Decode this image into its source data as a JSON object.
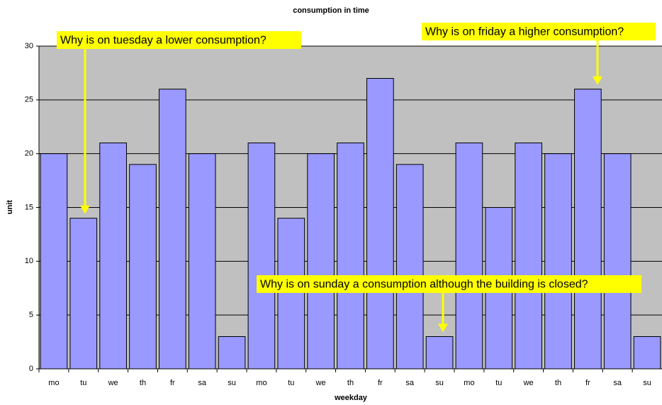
{
  "chart_data": {
    "type": "bar",
    "title": "consumption in time",
    "x_label": "weekday",
    "y_label": "unit",
    "categories": [
      "mo",
      "tu",
      "we",
      "th",
      "fr",
      "sa",
      "su",
      "mo",
      "tu",
      "we",
      "th",
      "fr",
      "sa",
      "su",
      "mo",
      "tu",
      "we",
      "th",
      "fr",
      "sa",
      "su"
    ],
    "values": [
      20,
      14,
      21,
      19,
      26,
      20,
      3,
      21,
      14,
      20,
      21,
      27,
      19,
      3,
      21,
      15,
      21,
      20,
      26,
      20,
      3
    ],
    "color": "#9999ff",
    "background": "#c0c0c0",
    "ylim": [
      0,
      30
    ],
    "yticks": [
      0,
      5,
      10,
      15,
      20,
      25,
      30
    ],
    "grid": true,
    "annotations": [
      "Why is on tuesday a lower consumption?",
      "Why is on friday a higher consumption?",
      "Why is on sunday a consumption although the building is closed?"
    ]
  }
}
